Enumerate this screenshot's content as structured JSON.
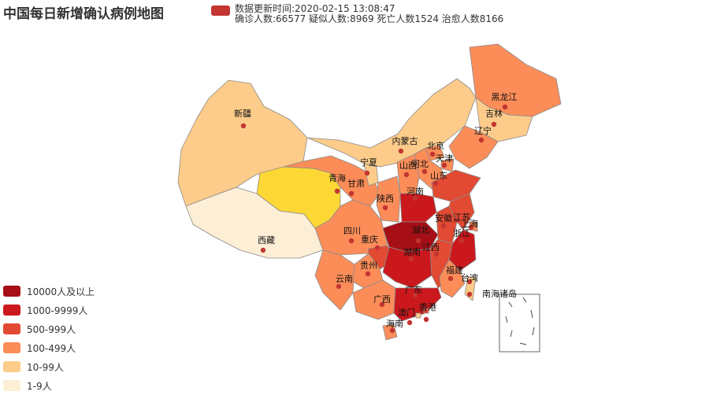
{
  "title": "中国每日新增确认病例地图",
  "series_legend": {
    "color": "#c23531",
    "lines": [
      "数据更新时间:2020-02-15 13:08:47",
      "确诊人数:66577 疑似人数:8969 死亡人数1524 治愈人数8166"
    ]
  },
  "visual_map": [
    {
      "label": "10000人及以上",
      "color": "#a50f15"
    },
    {
      "label": "1000-9999人",
      "color": "#cb181d"
    },
    {
      "label": "500-999人",
      "color": "#e34a33"
    },
    {
      "label": "100-499人",
      "color": "#fc8d59"
    },
    {
      "label": "10-99人",
      "color": "#fdcc8a"
    },
    {
      "label": "1-9人",
      "color": "#fdeed6"
    }
  ],
  "colors": {
    "yellow_highlight": "#fdd835",
    "border": "#8a8a8a",
    "marker": "#c23531"
  },
  "provinces": [
    {
      "name": "新疆",
      "band": 4
    },
    {
      "name": "西藏",
      "band": 5
    },
    {
      "name": "青海",
      "band": -1
    },
    {
      "name": "甘肃",
      "band": 3
    },
    {
      "name": "宁夏",
      "band": 4
    },
    {
      "name": "内蒙古",
      "band": 4
    },
    {
      "name": "黑龙江",
      "band": 3
    },
    {
      "name": "吉林",
      "band": 4
    },
    {
      "name": "辽宁",
      "band": 3
    },
    {
      "name": "北京",
      "band": 3
    },
    {
      "name": "天津",
      "band": 3
    },
    {
      "name": "河北",
      "band": 3
    },
    {
      "name": "山西",
      "band": 3
    },
    {
      "name": "陕西",
      "band": 3
    },
    {
      "name": "山东",
      "band": 2
    },
    {
      "name": "河南",
      "band": 1
    },
    {
      "name": "四川",
      "band": 3
    },
    {
      "name": "重庆",
      "band": 2
    },
    {
      "name": "湖北",
      "band": 0
    },
    {
      "name": "安徽",
      "band": 2
    },
    {
      "name": "江苏",
      "band": 2
    },
    {
      "name": "上海",
      "band": 3
    },
    {
      "name": "浙江",
      "band": 1
    },
    {
      "name": "云南",
      "band": 3
    },
    {
      "name": "贵州",
      "band": 3
    },
    {
      "name": "湖南",
      "band": 1
    },
    {
      "name": "江西",
      "band": 2
    },
    {
      "name": "福建",
      "band": 3
    },
    {
      "name": "台湾",
      "band": 4
    },
    {
      "name": "广西",
      "band": 3
    },
    {
      "name": "广东",
      "band": 1
    },
    {
      "name": "香港",
      "band": 2
    },
    {
      "name": "澳门",
      "band": 4
    },
    {
      "name": "海南",
      "band": 3
    },
    {
      "name": "南海诸岛",
      "band": -2
    }
  ]
}
